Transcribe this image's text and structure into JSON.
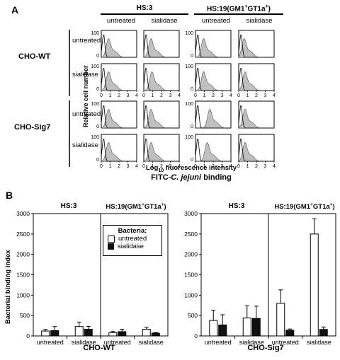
{
  "panel_a": {
    "label": "A",
    "groups": [
      "HS:3",
      "HS:19(GM1+GT1a+)"
    ],
    "treatments": [
      "untreated",
      "sialidase"
    ],
    "row_groups": [
      "CHO-WT",
      "CHO-Sig7"
    ],
    "row_labels": [
      "untreated",
      "sialidase"
    ],
    "y_axis_label": "Relative cell number",
    "y_tick": "100",
    "y_tick_zero": "0",
    "x_ticks": [
      "0",
      "1",
      "2",
      "3",
      "4"
    ],
    "x_axis_label": "Log10 fluorescence intensity",
    "caption": "FITC-C. jejuni binding"
  },
  "panel_b": {
    "label": "B",
    "y_axis_label": "Bacterial binding index",
    "legend_title": "Bacteria:",
    "legend": [
      "untreated",
      "sialidase"
    ]
  },
  "chart_data": [
    {
      "type": "bar",
      "title": "CHO-WT",
      "groups": [
        "HS:3",
        "HS:19(GM1+GT1a+)"
      ],
      "categories": [
        "untreated",
        "sialidase",
        "untreated",
        "sialidase"
      ],
      "series": [
        {
          "name": "untreated",
          "values": [
            120,
            230,
            80,
            165
          ],
          "errors": [
            40,
            110,
            30,
            50
          ]
        },
        {
          "name": "sialidase",
          "values": [
            130,
            165,
            105,
            70
          ],
          "errors": [
            100,
            70,
            60,
            15
          ]
        }
      ],
      "ylabel": "Bacterial binding index",
      "ylim": [
        0,
        3000
      ],
      "yticks": [
        0,
        500,
        1000,
        1500,
        2000,
        2500,
        3000
      ],
      "legend_placement": "center"
    },
    {
      "type": "bar",
      "title": "CHO-Sig7",
      "groups": [
        "HS:3",
        "HS:19(GM1+GT1a+)"
      ],
      "categories": [
        "untreated",
        "sialidase",
        "untreated",
        "sialidase"
      ],
      "series": [
        {
          "name": "untreated",
          "values": [
            380,
            440,
            800,
            2500
          ],
          "errors": [
            250,
            300,
            330,
            370
          ]
        },
        {
          "name": "sialidase",
          "values": [
            270,
            430,
            140,
            160
          ],
          "errors": [
            250,
            300,
            30,
            60
          ]
        }
      ],
      "ylim": [
        0,
        3000
      ],
      "yticks": [
        0,
        500,
        1000,
        1500,
        2000,
        2500,
        3000
      ]
    }
  ],
  "colors": {
    "untreated": "#ffffff",
    "sialidase": "#111111",
    "histogram_fill": "#c0c0c0"
  }
}
